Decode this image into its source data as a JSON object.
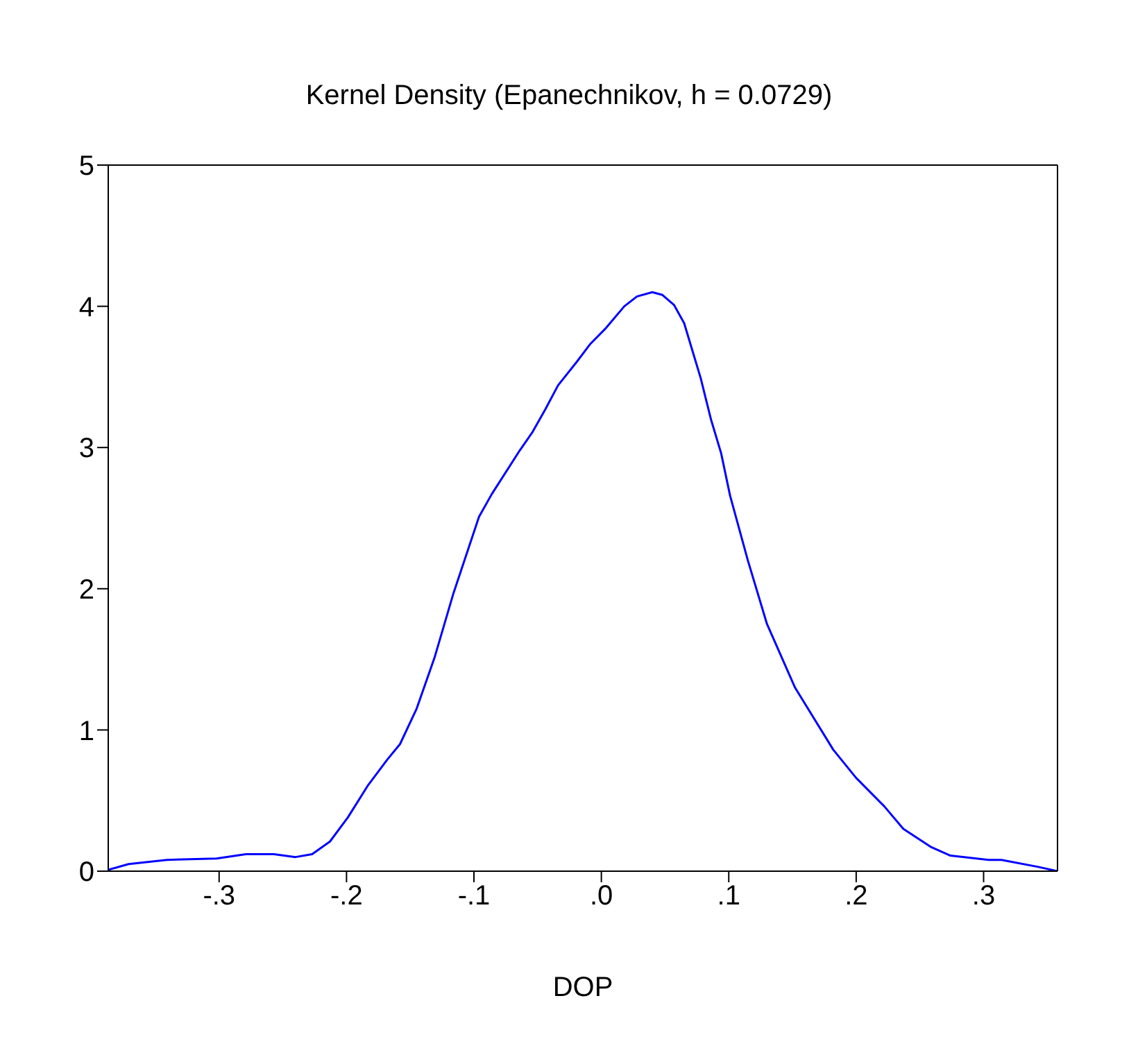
{
  "chart_data": {
    "type": "line",
    "title": "Kernel Density (Epanechnikov, h = 0.0729)",
    "xlabel": "DOP",
    "xlim": [
      -0.387,
      0.358
    ],
    "xticks": [
      {
        "value": -0.3,
        "label": "-.3"
      },
      {
        "value": -0.2,
        "label": "-.2"
      },
      {
        "value": -0.1,
        "label": "-.1"
      },
      {
        "value": 0,
        "label": ".0"
      },
      {
        "value": 0.1,
        "label": ".1"
      },
      {
        "value": 0.2,
        "label": ".2"
      },
      {
        "value": 0.3,
        "label": ".3"
      }
    ],
    "ylim": [
      0,
      5
    ],
    "yticks": [
      0,
      1,
      2,
      3,
      4,
      5
    ],
    "legend": false,
    "marker": "none",
    "line_style": "solid",
    "series": [
      {
        "color": "#0000ff",
        "x": [
          -0.387,
          -0.371,
          -0.341,
          -0.302,
          -0.279,
          -0.257,
          -0.24,
          -0.227,
          -0.213,
          -0.199,
          -0.183,
          -0.168,
          -0.158,
          -0.145,
          -0.131,
          -0.116,
          -0.096,
          -0.086,
          -0.064,
          -0.054,
          -0.044,
          -0.034,
          -0.019,
          -0.009,
          0.003,
          0.018,
          0.028,
          0.04,
          0.048,
          0.057,
          0.065,
          0.078,
          0.086,
          0.094,
          0.101,
          0.115,
          0.13,
          0.152,
          0.182,
          0.2,
          0.222,
          0.237,
          0.259,
          0.274,
          0.304,
          0.314,
          0.343,
          0.358
        ],
        "values": [
          0.01,
          0.05,
          0.08,
          0.09,
          0.12,
          0.12,
          0.1,
          0.12,
          0.21,
          0.38,
          0.61,
          0.79,
          0.9,
          1.15,
          1.51,
          1.97,
          2.51,
          2.67,
          2.98,
          3.11,
          3.27,
          3.44,
          3.61,
          3.73,
          3.84,
          4.0,
          4.07,
          4.1,
          4.08,
          4.01,
          3.88,
          3.49,
          3.2,
          2.96,
          2.66,
          2.2,
          1.75,
          1.3,
          0.86,
          0.66,
          0.46,
          0.3,
          0.17,
          0.11,
          0.08,
          0.08,
          0.03,
          0
        ]
      }
    ]
  }
}
